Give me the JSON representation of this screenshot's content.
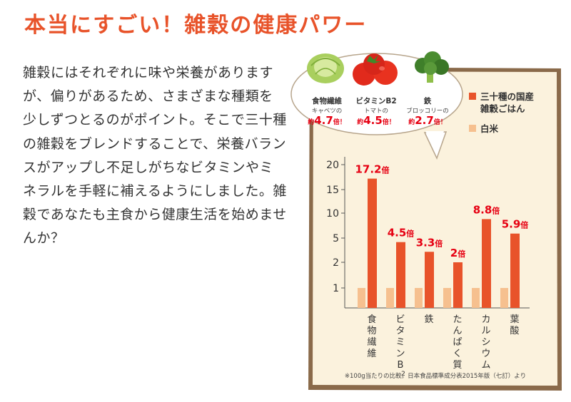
{
  "title": "本当にすごい！雑穀の健康パワー",
  "body": "雑穀にはそれぞれに味や栄養がありますが、偏りがあるため、さまざまな種類を少しずつとるのがポイント。そこで三十種の雑穀をブレンドすることで、栄養バランスがアップし不足しがちなビタミンやミネラルを手軽に補えるようにしました。雑穀であなたも主食から健康生活を始めませんか？",
  "callout": {
    "items": [
      {
        "name": "食物繊維",
        "sub": "キャベツの",
        "pre": "約",
        "value": "4.7",
        "suffix": "倍！",
        "icon": "cabbage-icon"
      },
      {
        "name": "ビタミンB2",
        "sub": "トマトの",
        "pre": "約",
        "value": "4.5",
        "suffix": "倍！",
        "icon": "tomato-icon"
      },
      {
        "name": "鉄",
        "sub": "ブロッコリーの",
        "pre": "約",
        "value": "2.7",
        "suffix": "倍！",
        "icon": "broccoli-icon"
      }
    ]
  },
  "legend": {
    "items": [
      {
        "label": "三十種の国産",
        "label2": "雑穀ごはん",
        "color": "#e8532a"
      },
      {
        "label": "白米",
        "label2": "",
        "color": "#f6c08f"
      }
    ]
  },
  "footnote": "※100g当たりの比較。日本食品標準成分表2015年版（七訂）より",
  "colors": {
    "accent": "#e8532a",
    "rice": "#f6c08f",
    "panel": "#fbf2dd",
    "frame": "#8a6a4a",
    "red": "#e60012"
  },
  "chart_data": {
    "type": "bar",
    "categories": [
      "食物繊維",
      "ビタミンB2",
      "鉄",
      "たんぱく質",
      "カルシウム",
      "葉酸"
    ],
    "yticks": [
      "20",
      "15",
      "10",
      "5",
      "2",
      "1"
    ],
    "series": [
      {
        "name": "三十種の国産雑穀ごはん",
        "values": [
          17.2,
          4.5,
          3.3,
          2,
          8.8,
          5.9
        ],
        "labels": [
          "17.2倍",
          "4.5倍",
          "3.3倍",
          "2倍",
          "8.8倍",
          "5.9倍"
        ]
      },
      {
        "name": "白米",
        "values": [
          1,
          1,
          1,
          1,
          1,
          1
        ]
      }
    ]
  }
}
